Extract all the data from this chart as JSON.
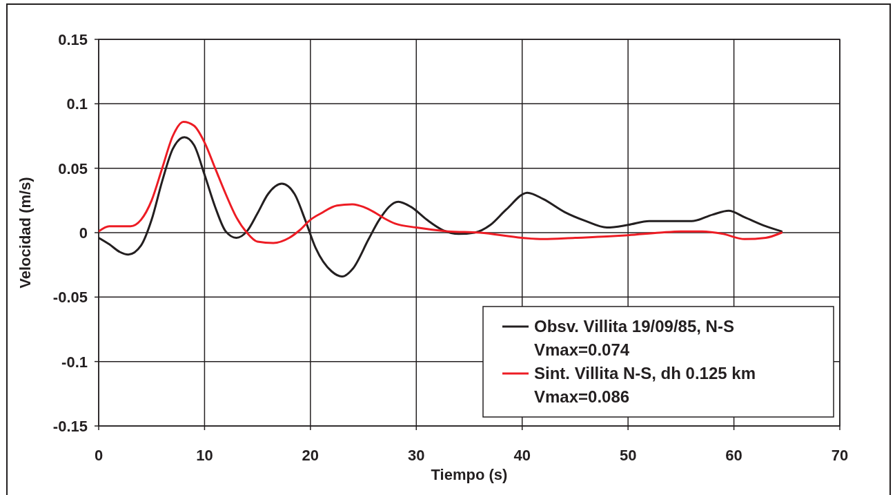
{
  "chart_data": {
    "type": "line",
    "xlabel": "Tiempo (s)",
    "ylabel": "Velocidad (m/s)",
    "xlim": [
      0,
      70
    ],
    "xticks": [
      0,
      10,
      20,
      30,
      40,
      50,
      60,
      70
    ],
    "ylim": [
      -0.15,
      0.15
    ],
    "yticks": [
      -0.15,
      -0.1,
      -0.05,
      0,
      0.05,
      0.1,
      0.15
    ],
    "grid": true,
    "legend": "bottom right",
    "marker": "none",
    "line_style": "solid",
    "series": [
      {
        "name": "Obsv. Villita 19/09/85, N-S\nVmax=0.074",
        "color": "#231f20",
        "x": [
          0,
          1,
          2,
          2.8,
          4,
          5,
          6,
          7,
          8.1,
          9,
          10,
          11,
          12,
          13,
          14,
          15,
          16,
          17.3,
          18.5,
          19.5,
          20.5,
          22,
          23,
          24,
          25.5,
          26.5,
          28.3,
          29.5,
          31,
          32.5,
          34,
          35.5,
          37,
          38.5,
          40.5,
          42,
          44,
          46,
          48,
          50,
          52,
          54,
          56,
          58,
          59.5,
          61,
          63,
          64.5
        ],
        "values": [
          -0.004,
          -0.009,
          -0.015,
          -0.017,
          -0.01,
          0.01,
          0.04,
          0.065,
          0.074,
          0.068,
          0.045,
          0.02,
          0.001,
          -0.004,
          0.001,
          0.015,
          0.03,
          0.038,
          0.03,
          0.01,
          -0.012,
          -0.03,
          -0.034,
          -0.028,
          -0.005,
          0.01,
          0.024,
          0.02,
          0.01,
          0.002,
          -0.001,
          0,
          0.006,
          0.018,
          0.031,
          0.026,
          0.016,
          0.009,
          0.004,
          0.006,
          0.009,
          0.009,
          0.009,
          0.014,
          0.017,
          0.012,
          0.005,
          0.001
        ]
      },
      {
        "name": "Sint. Villita N-S, dh 0.125 km\nVmax=0.086",
        "color": "#ed1c24",
        "x": [
          0,
          1,
          3,
          4,
          5,
          6,
          7,
          8,
          9,
          10,
          11,
          12,
          13,
          14,
          15,
          16.5,
          18,
          19,
          20,
          21,
          22.5,
          24,
          25,
          26,
          27,
          28,
          30,
          33,
          36,
          40,
          42,
          45,
          48,
          50,
          53,
          55,
          57,
          59,
          61,
          63,
          64.5
        ],
        "values": [
          0.001,
          0.005,
          0.005,
          0.01,
          0.025,
          0.05,
          0.075,
          0.086,
          0.083,
          0.07,
          0.05,
          0.03,
          0.012,
          0,
          -0.007,
          -0.008,
          -0.004,
          0.002,
          0.01,
          0.015,
          0.021,
          0.022,
          0.02,
          0.016,
          0.011,
          0.007,
          0.004,
          0.001,
          0,
          -0.004,
          -0.005,
          -0.004,
          -0.003,
          -0.002,
          0,
          0.001,
          0.001,
          -0.001,
          -0.005,
          -0.004,
          0
        ]
      }
    ]
  }
}
